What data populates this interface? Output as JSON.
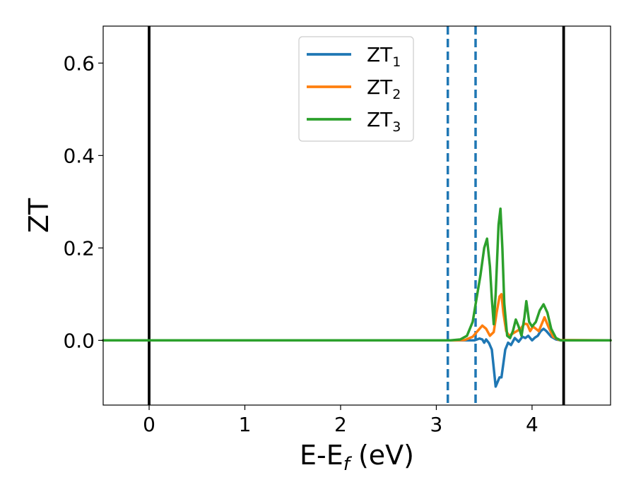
{
  "chart_data": {
    "type": "line",
    "xlabel": {
      "base": "E-E",
      "sub": "f",
      "suffix": " (eV)"
    },
    "ylabel": "ZT",
    "xlim": [
      -0.48,
      4.82
    ],
    "ylim": [
      -0.14,
      0.68
    ],
    "xticks": [
      0,
      1,
      2,
      3,
      4
    ],
    "xtick_labels": [
      "0",
      "1",
      "2",
      "3",
      "4"
    ],
    "yticks": [
      0.0,
      0.2,
      0.4,
      0.6
    ],
    "ytick_labels": [
      "0.0",
      "0.2",
      "0.4",
      "0.6"
    ],
    "grid": false,
    "legend_position": "top-center",
    "vertical_lines": [
      {
        "x": 0.0,
        "style": "solid",
        "color": "#000000"
      },
      {
        "x": 4.33,
        "style": "solid",
        "color": "#000000"
      },
      {
        "x": 3.12,
        "style": "dashed",
        "color": "#1f77b4"
      },
      {
        "x": 3.41,
        "style": "dashed",
        "color": "#1f77b4"
      }
    ],
    "series": [
      {
        "name": "ZT",
        "sub": "1",
        "color": "#1f77b4",
        "x": [
          -0.48,
          3.2,
          3.35,
          3.4,
          3.45,
          3.48,
          3.5,
          3.52,
          3.55,
          3.58,
          3.6,
          3.62,
          3.64,
          3.66,
          3.68,
          3.7,
          3.72,
          3.75,
          3.78,
          3.82,
          3.86,
          3.9,
          3.93,
          3.96,
          4.0,
          4.03,
          4.06,
          4.09,
          4.12,
          4.15,
          4.2,
          4.25,
          4.3,
          4.82
        ],
        "y": [
          0.0,
          0.0,
          0.0,
          0.0,
          0.004,
          0.002,
          -0.005,
          0.002,
          -0.006,
          -0.02,
          -0.06,
          -0.1,
          -0.09,
          -0.08,
          -0.08,
          -0.05,
          -0.02,
          -0.005,
          -0.01,
          0.005,
          -0.003,
          0.008,
          0.005,
          0.01,
          0.0,
          0.006,
          0.01,
          0.02,
          0.025,
          0.02,
          0.008,
          0.002,
          0.0,
          0.0
        ]
      },
      {
        "name": "ZT",
        "sub": "2",
        "color": "#ff7f0e",
        "x": [
          -0.48,
          3.2,
          3.3,
          3.38,
          3.43,
          3.48,
          3.52,
          3.56,
          3.6,
          3.63,
          3.66,
          3.68,
          3.7,
          3.73,
          3.76,
          3.8,
          3.84,
          3.88,
          3.92,
          3.95,
          3.98,
          4.01,
          4.04,
          4.07,
          4.1,
          4.13,
          4.17,
          4.22,
          4.28,
          4.82
        ],
        "y": [
          0.0,
          0.0,
          0.001,
          0.008,
          0.02,
          0.032,
          0.025,
          0.01,
          0.018,
          0.06,
          0.095,
          0.1,
          0.06,
          0.02,
          0.01,
          0.015,
          0.02,
          0.025,
          0.036,
          0.035,
          0.02,
          0.03,
          0.025,
          0.02,
          0.035,
          0.05,
          0.03,
          0.008,
          0.001,
          0.0
        ]
      },
      {
        "name": "ZT",
        "sub": "3",
        "color": "#2ca02c",
        "x": [
          -0.48,
          3.15,
          3.25,
          3.32,
          3.38,
          3.42,
          3.46,
          3.5,
          3.53,
          3.56,
          3.58,
          3.6,
          3.62,
          3.65,
          3.67,
          3.69,
          3.71,
          3.74,
          3.77,
          3.8,
          3.83,
          3.86,
          3.89,
          3.92,
          3.94,
          3.97,
          4.0,
          4.04,
          4.08,
          4.12,
          4.16,
          4.2,
          4.25,
          4.3,
          4.82
        ],
        "y": [
          0.0,
          0.0,
          0.002,
          0.01,
          0.04,
          0.09,
          0.14,
          0.2,
          0.22,
          0.16,
          0.09,
          0.035,
          0.1,
          0.25,
          0.285,
          0.2,
          0.08,
          0.01,
          0.005,
          0.02,
          0.045,
          0.03,
          0.01,
          0.05,
          0.085,
          0.04,
          0.03,
          0.04,
          0.065,
          0.078,
          0.06,
          0.025,
          0.005,
          0.0,
          0.0
        ]
      }
    ]
  }
}
